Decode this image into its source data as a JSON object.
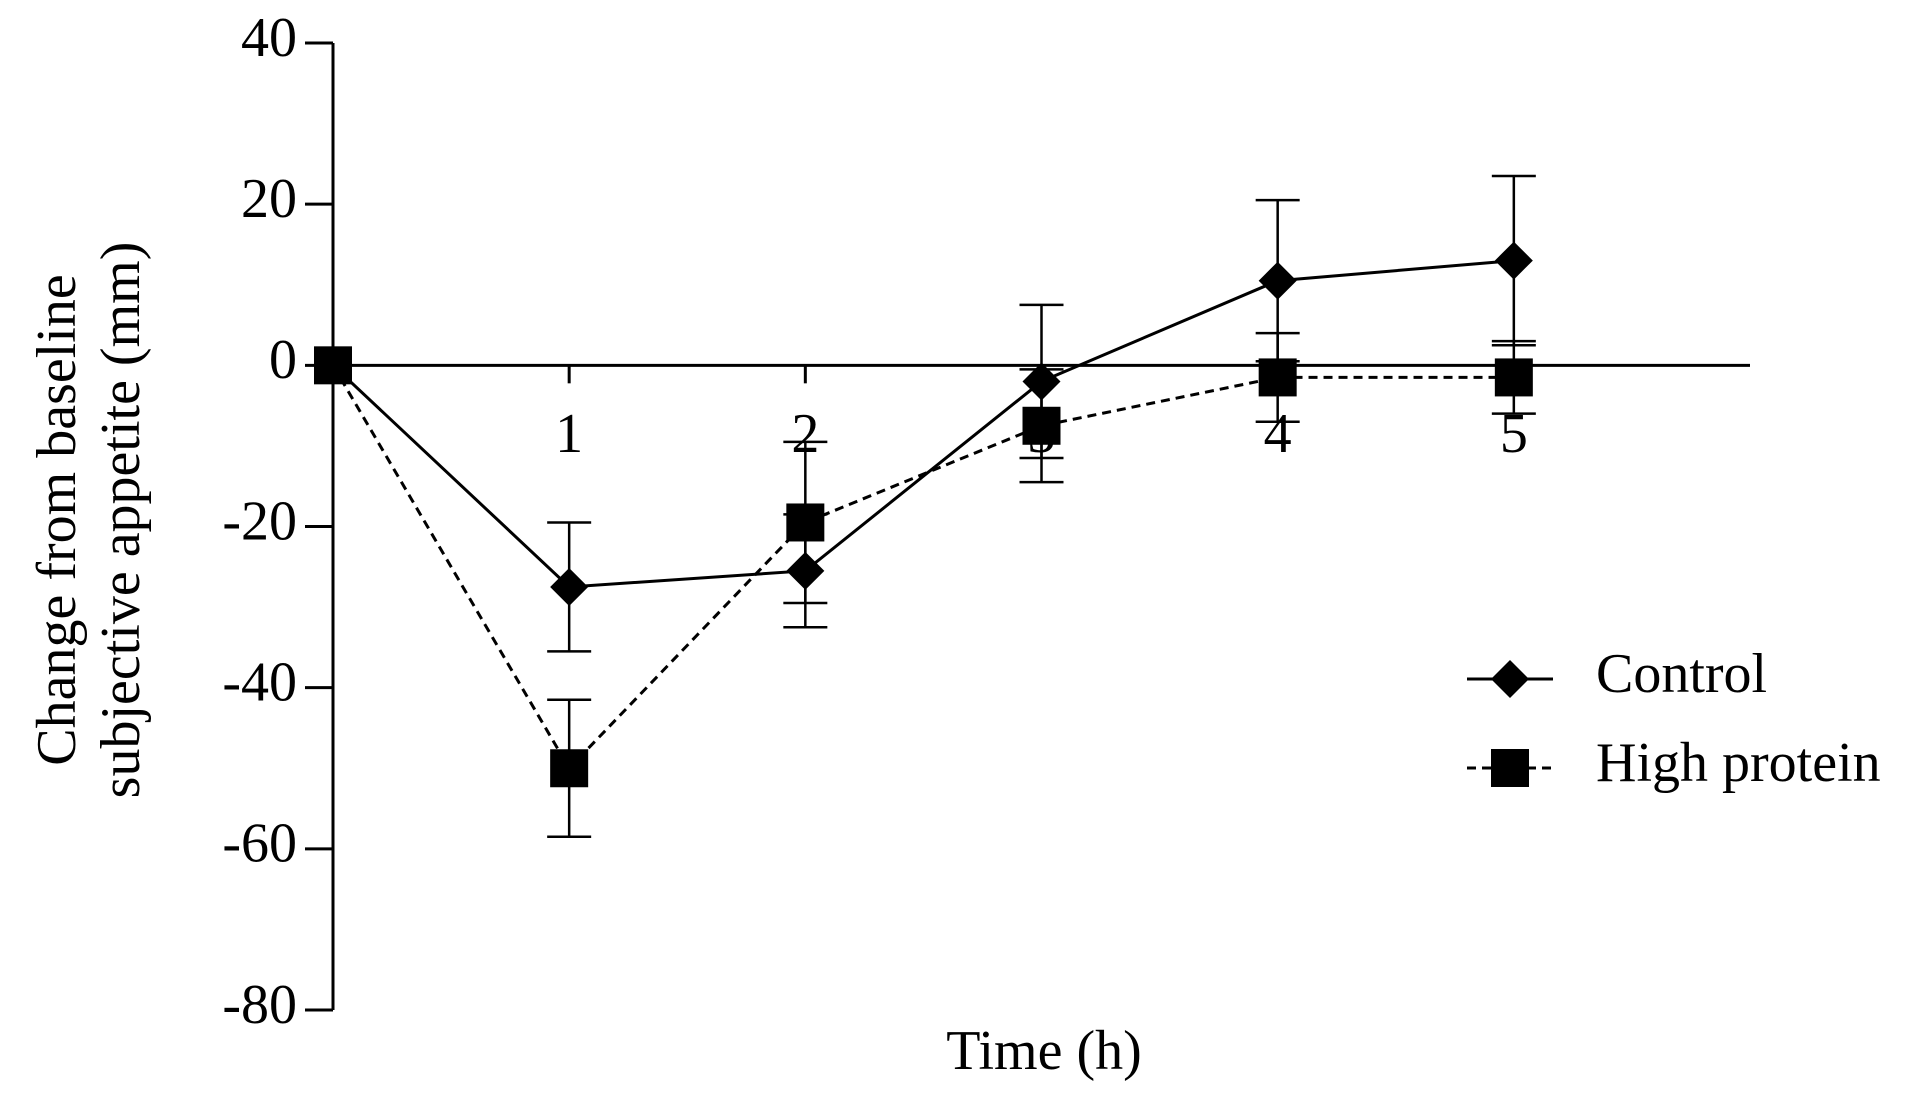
{
  "chart_data": {
    "type": "line",
    "xlabel": "Time (h)",
    "ylabel": [
      "Change from baseline",
      "subjective appetite (mm)"
    ],
    "x": [
      0,
      1,
      2,
      3,
      4,
      5
    ],
    "xlim": [
      0,
      6
    ],
    "xticks": [
      1,
      2,
      3,
      4,
      5
    ],
    "ylim": [
      -80,
      40
    ],
    "yticks": [
      -80,
      -60,
      -40,
      -20,
      0,
      20,
      40
    ],
    "legend": "right",
    "series": [
      {
        "name": "Control",
        "color": "#000000",
        "marker": "diamond",
        "dash": false,
        "values": [
          0,
          -27.5,
          -25.5,
          -2,
          10.5,
          13
        ],
        "errors": [
          0,
          8,
          7,
          9.5,
          10,
          10.5
        ]
      },
      {
        "name": "High protein",
        "color": "#000000",
        "marker": "square",
        "dash": true,
        "values": [
          0,
          -50,
          -19.5,
          -7.5,
          -1.5,
          -1.5
        ],
        "errors": [
          0,
          8.5,
          10,
          7,
          5.5,
          4.5
        ]
      }
    ]
  }
}
